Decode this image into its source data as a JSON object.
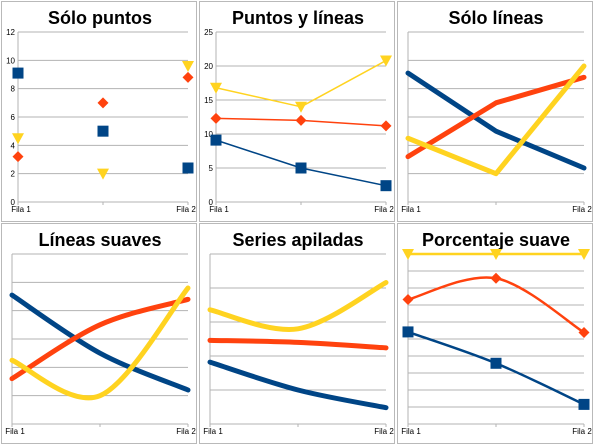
{
  "chart_data": [
    {
      "type": "scatter",
      "title": "Sólo puntos",
      "categories": [
        "Fila 1",
        "",
        "Fila 2"
      ],
      "x_tick_labels": [
        "Fila 1",
        "Fila 2"
      ],
      "y_tick_labels": [
        "12",
        "10",
        "8",
        "6",
        "4",
        "2",
        "0"
      ],
      "ylim": [
        0,
        12
      ],
      "ytick_step": 2,
      "grid": true,
      "series": [
        {
          "values": [
            9.1,
            5.0,
            2.4
          ],
          "color": "#004586",
          "marker": "square"
        },
        {
          "values": [
            3.2,
            7.0,
            8.8
          ],
          "color": "#ff420e",
          "marker": "diamond"
        },
        {
          "values": [
            4.5,
            2.0,
            9.6
          ],
          "color": "#ffd320",
          "marker": "triangle"
        }
      ],
      "show_lines": false,
      "show_markers": true
    },
    {
      "type": "line",
      "title": "Puntos y líneas",
      "categories": [
        "Fila 1",
        "",
        "Fila 2"
      ],
      "x_tick_labels": [
        "Fila 1",
        "Fila 2"
      ],
      "y_tick_labels": [
        "25",
        "20",
        "15",
        "10",
        "5",
        "0"
      ],
      "ylim": [
        0,
        25
      ],
      "ytick_step": 5,
      "grid": true,
      "series": [
        {
          "values": [
            9.1,
            5.0,
            2.4
          ],
          "color": "#004586",
          "marker": "square"
        },
        {
          "values": [
            3.2,
            7.0,
            8.8
          ],
          "color": "#ff420e",
          "marker": "diamond"
        },
        {
          "values": [
            4.5,
            2.0,
            9.6
          ],
          "color": "#ffd320",
          "marker": "triangle"
        }
      ],
      "stacked": true,
      "show_lines": true,
      "show_markers": true,
      "line_width": 1.5
    },
    {
      "type": "line",
      "title": "Sólo líneas",
      "categories": [
        "Fila 1",
        "",
        "Fila 2"
      ],
      "x_tick_labels": [
        "Fila 1",
        "Fila 2"
      ],
      "ylim": [
        0,
        12
      ],
      "ytick_step": 2,
      "grid": true,
      "series": [
        {
          "values": [
            9.1,
            5.0,
            2.4
          ],
          "color": "#004586"
        },
        {
          "values": [
            3.2,
            7.0,
            8.8
          ],
          "color": "#ff420e"
        },
        {
          "values": [
            4.5,
            2.0,
            9.6
          ],
          "color": "#ffd320"
        }
      ],
      "show_lines": true,
      "show_markers": false,
      "line_width": 5
    },
    {
      "type": "line",
      "title": "Líneas suaves",
      "categories": [
        "Fila 1",
        "",
        "Fila 2"
      ],
      "x_tick_labels": [
        "Fila 1",
        "Fila 2"
      ],
      "ylim": [
        0,
        12
      ],
      "ytick_step": 2,
      "grid": true,
      "series": [
        {
          "values": [
            9.1,
            5.0,
            2.4
          ],
          "color": "#004586"
        },
        {
          "values": [
            3.2,
            7.0,
            8.8
          ],
          "color": "#ff420e"
        },
        {
          "values": [
            4.5,
            2.0,
            9.6
          ],
          "color": "#ffd320"
        }
      ],
      "smooth": true,
      "show_lines": true,
      "show_markers": false,
      "line_width": 5
    },
    {
      "type": "line",
      "title": "Series apiladas",
      "categories": [
        "Fila 1",
        "",
        "Fila 2"
      ],
      "x_tick_labels": [
        "Fila 1",
        "Fila 2"
      ],
      "ylim": [
        0,
        25
      ],
      "ytick_step": 5,
      "grid": true,
      "series": [
        {
          "values": [
            9.1,
            5.0,
            2.4
          ],
          "color": "#004586"
        },
        {
          "values": [
            3.2,
            7.0,
            8.8
          ],
          "color": "#ff420e"
        },
        {
          "values": [
            4.5,
            2.0,
            9.6
          ],
          "color": "#ffd320"
        }
      ],
      "stacked": true,
      "smooth": true,
      "show_lines": true,
      "show_markers": false,
      "line_width": 5
    },
    {
      "type": "line",
      "title": "Porcentaje suave",
      "categories": [
        "Fila 1",
        "",
        "Fila 2"
      ],
      "x_tick_labels": [
        "Fila 1",
        "Fila 2"
      ],
      "ylim": [
        0,
        100
      ],
      "ytick_step": 10,
      "grid": true,
      "series": [
        {
          "values": [
            9.1,
            5.0,
            2.4
          ],
          "color": "#004586",
          "marker": "square"
        },
        {
          "values": [
            3.2,
            7.0,
            8.8
          ],
          "color": "#ff420e",
          "marker": "diamond"
        },
        {
          "values": [
            4.5,
            2.0,
            9.6
          ],
          "color": "#ffd320",
          "marker": "triangle"
        }
      ],
      "stacked": true,
      "percent": true,
      "smooth": true,
      "show_lines": true,
      "show_markers": true,
      "line_width": 2.5
    }
  ]
}
